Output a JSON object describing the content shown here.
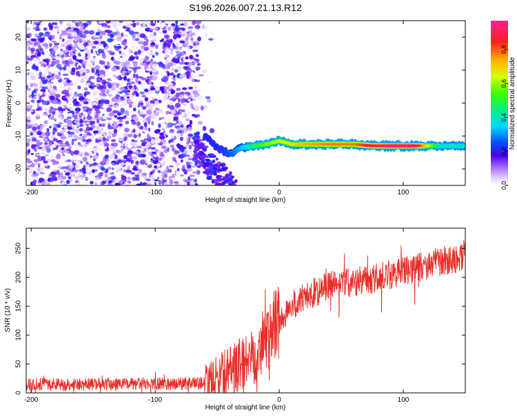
{
  "title": "S196.2026.007.21.13.R12",
  "chart_data": [
    {
      "type": "heatmap",
      "title": "S196.2026.007.21.13.R12",
      "xlabel": "Height of straight line (km)",
      "ylabel": "Frequency (Hz)",
      "xlim": [
        -204,
        150
      ],
      "ylim": [
        -25,
        25
      ],
      "xticks": [
        -200,
        -100,
        0,
        100
      ],
      "yticks": [
        -20,
        -10,
        0,
        10,
        20
      ],
      "colorbar": {
        "label": "Normalized spectral amplitude",
        "range": [
          0.0,
          0.97
        ],
        "ticks": [
          "0.0",
          "0.2",
          "0.4",
          "0.6",
          "0.8"
        ],
        "tick_values": [
          0.0,
          0.2,
          0.4,
          0.6,
          0.8
        ]
      },
      "noise_region": {
        "x_range": [
          -204,
          -65
        ],
        "freq_range": [
          -25,
          25
        ],
        "amplitude": 0.05
      },
      "signal_track": {
        "x": [
          -60,
          -50,
          -40,
          -30,
          -20,
          -10,
          0,
          10,
          20,
          40,
          60,
          75,
          90,
          110,
          130,
          150
        ],
        "freq": [
          -10.0,
          -13.5,
          -15.5,
          -13.5,
          -13.0,
          -12.5,
          -11.5,
          -12.5,
          -12.5,
          -12.5,
          -12.5,
          -13.0,
          -13.0,
          -13.0,
          -13.0,
          -13.0
        ],
        "amplitude": [
          0.2,
          0.2,
          0.25,
          0.35,
          0.5,
          0.6,
          0.65,
          0.7,
          0.75,
          0.8,
          0.8,
          0.9,
          0.95,
          0.95,
          0.4,
          0.4
        ]
      }
    },
    {
      "type": "line",
      "xlabel": "Height of straight line (km)",
      "ylabel": "SNR (10 * v/v)",
      "xlim": [
        -204,
        150
      ],
      "ylim": [
        0,
        285
      ],
      "xticks": [
        -200,
        -100,
        0,
        100
      ],
      "yticks": [
        0,
        50,
        100,
        150,
        200,
        250
      ],
      "series": [
        {
          "name": "SNR",
          "color": "#e8302a",
          "x": [
            -204,
            -180,
            -160,
            -140,
            -120,
            -100,
            -80,
            -65,
            -55,
            -45,
            -35,
            -25,
            -15,
            -5,
            0,
            10,
            20,
            30,
            40,
            50,
            60,
            70,
            80,
            90,
            100,
            110,
            120,
            130,
            140,
            150
          ],
          "y": [
            15,
            15,
            15,
            15,
            15,
            16,
            16,
            16,
            22,
            35,
            45,
            60,
            80,
            110,
            125,
            150,
            165,
            175,
            185,
            190,
            192,
            195,
            200,
            205,
            210,
            215,
            222,
            228,
            232,
            240
          ]
        }
      ]
    }
  ]
}
